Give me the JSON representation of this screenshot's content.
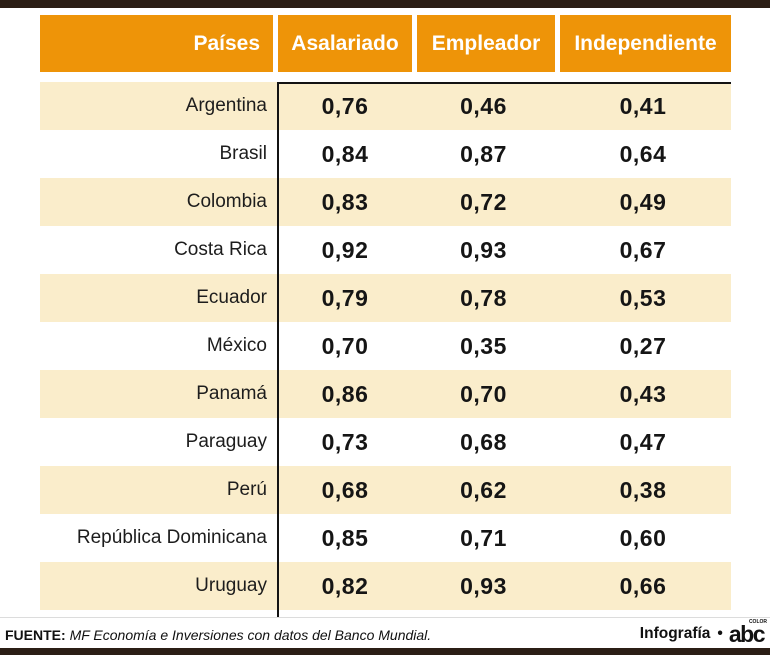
{
  "colors": {
    "orange": "#ee9408",
    "cream": "#faedcb",
    "bar_dark": "#2b1e15",
    "text_dark": "#1a1a1a"
  },
  "table": {
    "header": {
      "paises": "Países",
      "asalariado": "Asalariado",
      "empleador": "Empleador",
      "independiente": "Independiente"
    },
    "rows": [
      {
        "country": "Argentina",
        "values": [
          "0,76",
          "0,46",
          "0,41"
        ]
      },
      {
        "country": "Brasil",
        "values": [
          "0,84",
          "0,87",
          "0,64"
        ]
      },
      {
        "country": "Colombia",
        "values": [
          "0,83",
          "0,72",
          "0,49"
        ]
      },
      {
        "country": "Costa Rica",
        "values": [
          "0,92",
          "0,93",
          "0,67"
        ]
      },
      {
        "country": "Ecuador",
        "values": [
          "0,79",
          "0,78",
          "0,53"
        ]
      },
      {
        "country": "México",
        "values": [
          "0,70",
          "0,35",
          "0,27"
        ]
      },
      {
        "country": "Panamá",
        "values": [
          "0,86",
          "0,70",
          "0,43"
        ]
      },
      {
        "country": "Paraguay",
        "values": [
          "0,73",
          "0,68",
          "0,47"
        ]
      },
      {
        "country": "Perú",
        "values": [
          "0,68",
          "0,62",
          "0,38"
        ]
      },
      {
        "country": "República Dominicana",
        "values": [
          "0,85",
          "0,71",
          "0,60"
        ]
      },
      {
        "country": "Uruguay",
        "values": [
          "0,82",
          "0,93",
          "0,66"
        ]
      }
    ]
  },
  "footer": {
    "source_label": "FUENTE:",
    "source_text": "MF Economía e Inversiones con datos del Banco Mundial.",
    "credit": "Infografía",
    "bullet": "•",
    "logo": "abc",
    "logo_super": "COLOR"
  },
  "chart_data": {
    "type": "table",
    "title": "",
    "columns": [
      "Países",
      "Asalariado",
      "Empleador",
      "Independiente"
    ],
    "categories": [
      "Argentina",
      "Brasil",
      "Colombia",
      "Costa Rica",
      "Ecuador",
      "México",
      "Panamá",
      "Paraguay",
      "Perú",
      "República Dominicana",
      "Uruguay"
    ],
    "series": [
      {
        "name": "Asalariado",
        "values": [
          0.76,
          0.84,
          0.83,
          0.92,
          0.79,
          0.7,
          0.86,
          0.73,
          0.68,
          0.85,
          0.82
        ]
      },
      {
        "name": "Empleador",
        "values": [
          0.46,
          0.87,
          0.72,
          0.93,
          0.78,
          0.35,
          0.7,
          0.68,
          0.62,
          0.71,
          0.93
        ]
      },
      {
        "name": "Independiente",
        "values": [
          0.41,
          0.64,
          0.49,
          0.67,
          0.53,
          0.27,
          0.43,
          0.47,
          0.38,
          0.6,
          0.66
        ]
      }
    ],
    "decimal_separator": ",",
    "source": "MF Economía e Inversiones con datos del Banco Mundial."
  }
}
